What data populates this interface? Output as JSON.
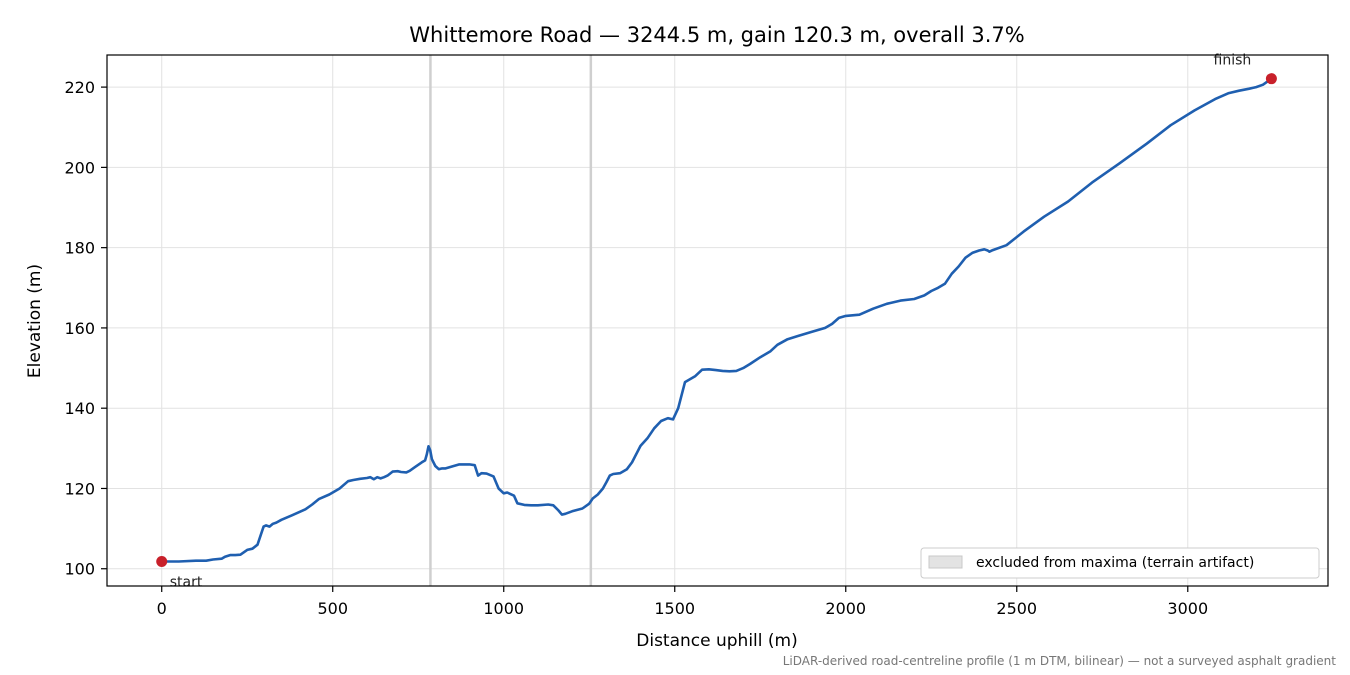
{
  "chart_data": {
    "type": "line",
    "title": "Whittemore Road — 3244.5 m, gain 120.3 m, overall 3.7%",
    "xlabel": "Distance uphill (m)",
    "ylabel": "Elevation (m)",
    "xlim": [
      -160,
      3410
    ],
    "ylim": [
      95.7,
      228
    ],
    "xticks": [
      0,
      500,
      1000,
      1500,
      2000,
      2500,
      3000
    ],
    "yticks": [
      100,
      120,
      140,
      160,
      180,
      200,
      220
    ],
    "grid": true,
    "legend_placement": "lower-right",
    "legend": [
      {
        "label": "excluded from maxima (terrain artifact)"
      }
    ],
    "excluded_regions": [
      {
        "from": 782,
        "to": 788
      },
      {
        "from": 1251,
        "to": 1257
      }
    ],
    "markers": [
      {
        "label": "start",
        "x": 0,
        "y": 101.8
      },
      {
        "label": "finish",
        "x": 3244.5,
        "y": 222.1
      }
    ],
    "footnote": "LiDAR-derived road-centreline profile (1 m DTM, bilinear) — not a surveyed asphalt gradient",
    "series": [
      {
        "color": "#1f5fb0",
        "x": [
          0,
          50,
          100,
          130,
          150,
          175,
          185,
          200,
          215,
          230,
          250,
          265,
          280,
          290,
          298,
          305,
          315,
          325,
          335,
          350,
          380,
          420,
          440,
          460,
          490,
          520,
          545,
          560,
          580,
          600,
          610,
          620,
          630,
          640,
          650,
          660,
          675,
          690,
          700,
          715,
          725,
          740,
          760,
          770,
          775,
          780,
          785,
          790,
          800,
          810,
          820,
          830,
          850,
          870,
          885,
          900,
          915,
          925,
          935,
          950,
          970,
          985,
          1000,
          1010,
          1030,
          1040,
          1060,
          1080,
          1100,
          1130,
          1145,
          1160,
          1170,
          1180,
          1200,
          1230,
          1250,
          1260,
          1275,
          1290,
          1300,
          1310,
          1320,
          1340,
          1360,
          1375,
          1400,
          1420,
          1440,
          1460,
          1480,
          1495,
          1510,
          1530,
          1560,
          1580,
          1600,
          1620,
          1640,
          1660,
          1680,
          1700,
          1720,
          1750,
          1780,
          1800,
          1830,
          1860,
          1900,
          1940,
          1960,
          1980,
          2000,
          2040,
          2080,
          2120,
          2160,
          2200,
          2230,
          2250,
          2270,
          2290,
          2310,
          2330,
          2350,
          2370,
          2390,
          2405,
          2415,
          2420,
          2430,
          2470,
          2520,
          2580,
          2650,
          2720,
          2800,
          2880,
          2950,
          3020,
          3080,
          3120,
          3150,
          3180,
          3190,
          3200,
          3220,
          3244.5
        ],
        "y": [
          101.8,
          101.8,
          102.0,
          102.0,
          102.3,
          102.5,
          103.0,
          103.4,
          103.4,
          103.5,
          104.7,
          105.0,
          106.0,
          108.5,
          110.5,
          110.8,
          110.5,
          111.2,
          111.5,
          112.2,
          113.3,
          114.8,
          116.0,
          117.4,
          118.5,
          120.0,
          121.8,
          122.1,
          122.4,
          122.6,
          122.8,
          122.3,
          122.8,
          122.5,
          122.8,
          123.2,
          124.2,
          124.3,
          124.1,
          124.0,
          124.4,
          125.3,
          126.5,
          127.0,
          128.5,
          130.5,
          129.5,
          127.3,
          125.6,
          124.8,
          125.0,
          125.0,
          125.5,
          126.0,
          126.0,
          126.0,
          125.8,
          123.2,
          123.8,
          123.7,
          123.0,
          120.0,
          118.8,
          119.0,
          118.2,
          116.3,
          115.9,
          115.8,
          115.8,
          116.0,
          115.8,
          114.5,
          113.5,
          113.7,
          114.3,
          115.0,
          116.2,
          117.5,
          118.5,
          120.0,
          121.5,
          123.2,
          123.6,
          123.8,
          124.8,
          126.5,
          130.6,
          132.5,
          135.0,
          136.8,
          137.5,
          137.2,
          140.0,
          146.5,
          148.0,
          149.6,
          149.7,
          149.5,
          149.3,
          149.2,
          149.3,
          150.0,
          151.0,
          152.7,
          154.2,
          155.8,
          157.2,
          158.0,
          159.0,
          160.0,
          161.0,
          162.5,
          163.0,
          163.3,
          164.8,
          166.0,
          166.8,
          167.2,
          168.1,
          169.2,
          170.0,
          171.0,
          173.5,
          175.3,
          177.5,
          178.7,
          179.3,
          179.6,
          179.3,
          179.0,
          179.4,
          180.6,
          184.0,
          187.7,
          191.5,
          196.2,
          201.0,
          205.9,
          210.5,
          214.2,
          217.0,
          218.5,
          219.1,
          219.6,
          219.8,
          220.0,
          220.6,
          222.1
        ]
      }
    ]
  }
}
